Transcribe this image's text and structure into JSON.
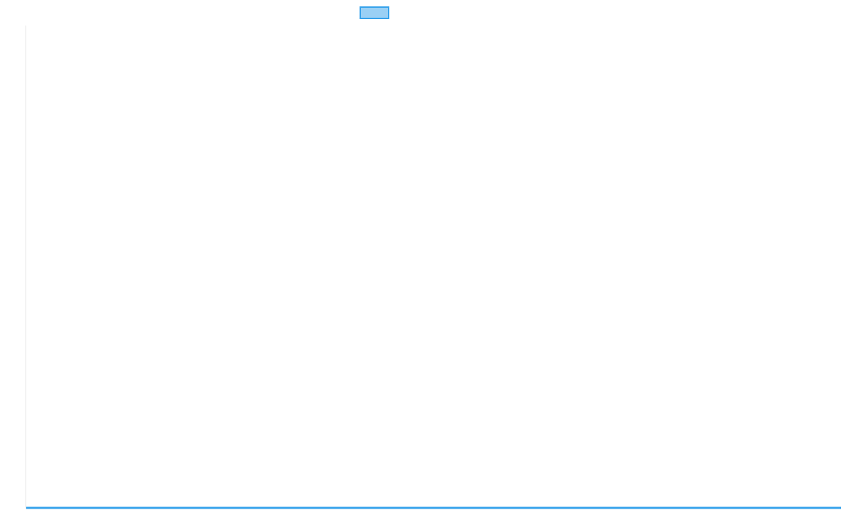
{
  "chart_data": {
    "type": "line",
    "title": "",
    "xlabel": "",
    "ylabel": "",
    "categories": [],
    "series": [
      {
        "name": "",
        "values": [],
        "color": "#36a2eb",
        "fill": "#9ad0f5"
      }
    ],
    "legend": "top",
    "grid": false
  }
}
